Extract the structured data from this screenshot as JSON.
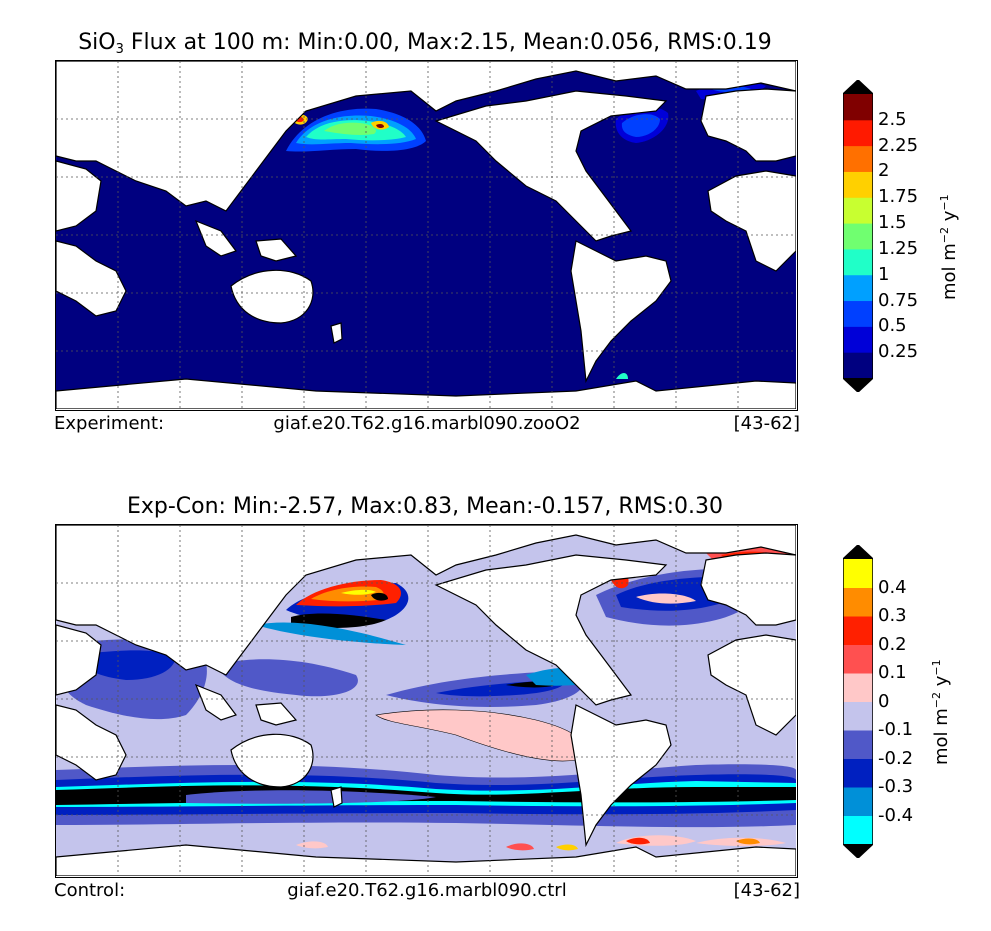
{
  "panel_top": {
    "title_prefix": "SiO",
    "title_sub": "3",
    "title_rest": " Flux at 100 m: Min:0.00, Max:2.15, Mean:0.056, RMS:0.19",
    "footer_label": "Experiment:",
    "case_name": "giaf.e20.T62.g16.marbl090.zooO2",
    "years": "[43-62]",
    "colorbar": {
      "units_main": "mol m",
      "units_exp1": "−2",
      "units_mid": " y",
      "units_exp2": "−1",
      "ticks": [
        "2.5",
        "2.25",
        "2",
        "1.75",
        "1.5",
        "1.25",
        "1",
        "0.75",
        "0.5",
        "0.25"
      ],
      "colors": [
        "#000080",
        "#0000d8",
        "#0040ff",
        "#00a0ff",
        "#20ffc8",
        "#70ff70",
        "#c8ff30",
        "#ffd000",
        "#ff7000",
        "#ff1a00",
        "#800000"
      ],
      "under_color": "#000000",
      "over_color": "#000000"
    }
  },
  "panel_bottom": {
    "title": "Exp-Con: Min:-2.57, Max:0.83, Mean:-0.157, RMS:0.30",
    "footer_label": "Control:",
    "case_name": "giaf.e20.T62.g16.marbl090.ctrl",
    "years": "[43-62]",
    "colorbar": {
      "units_main": "mol m",
      "units_exp1": "−2",
      "units_mid": " y",
      "units_exp2": "−1",
      "ticks": [
        "0.4",
        "0.3",
        "0.2",
        "0.1",
        "0",
        "-0.1",
        "-0.2",
        "-0.3",
        "-0.4"
      ],
      "colors": [
        "#00ffff",
        "#0090d8",
        "#0020c0",
        "#5058c8",
        "#c4c4ec",
        "#ffc8c8",
        "#ff5050",
        "#ff2000",
        "#ff8c00",
        "#ffff00"
      ],
      "under_color": "#000000",
      "over_color": "#000000"
    }
  },
  "map_colors": {
    "land": "#ffffff",
    "coast": "#000000",
    "grid": "#555555",
    "top_ocean": "#000080",
    "bottom_ocean": "#c4c4ec"
  }
}
